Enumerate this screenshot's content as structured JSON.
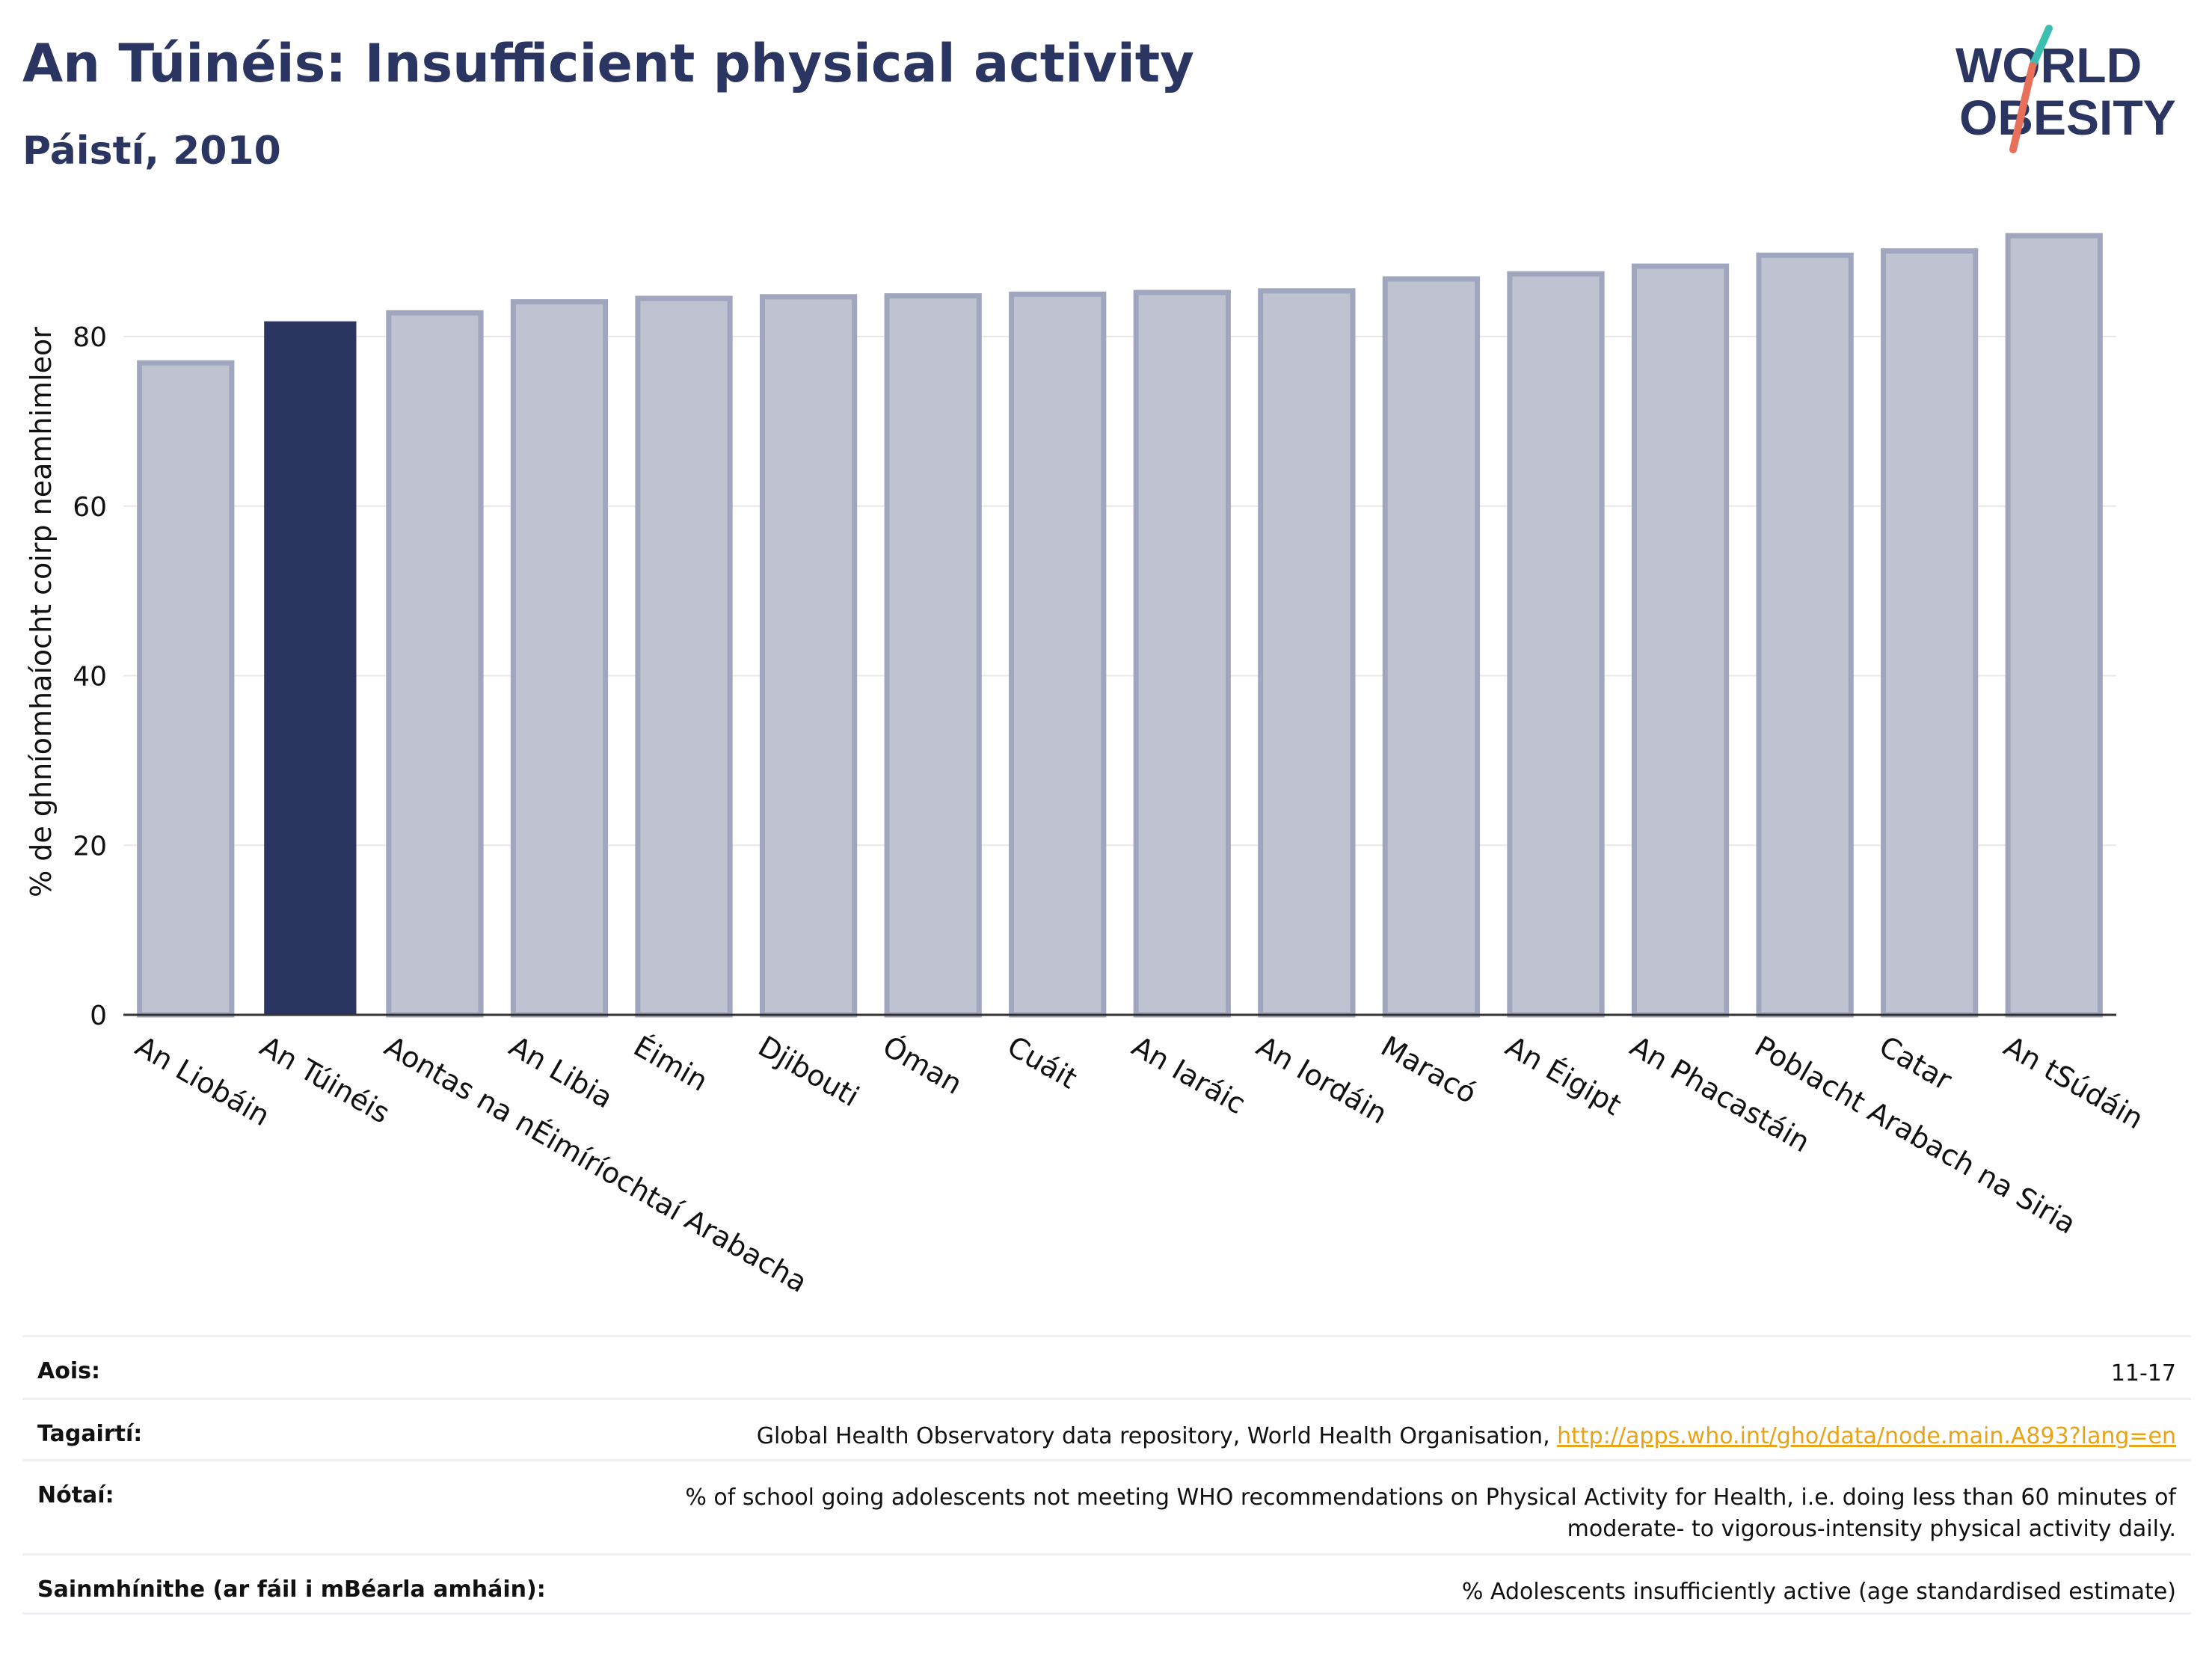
{
  "header": {
    "title": "An Túinéis: Insufficient physical activity",
    "subtitle": "Páistí, 2010"
  },
  "logo": {
    "line1": "WORLD",
    "line2": "OBESITY",
    "icon": "world-obesity-logo"
  },
  "colors": {
    "highlight": "#2b3561",
    "bar_fill": "#bfc3d1",
    "bar_stroke": "#a0a6bd",
    "grid": "#e6e8ee",
    "accent_teal": "#3bbfb0",
    "accent_coral": "#e8705a",
    "link": "#e8a317"
  },
  "chart_data": {
    "type": "bar",
    "ylabel": "% de ghníomhaíocht coirp neamhimleor",
    "ylim": [
      0,
      95
    ],
    "yticks": [
      0,
      20,
      40,
      60,
      80
    ],
    "grid": true,
    "highlight_category": "An Túinéis",
    "categories": [
      "An Liobáin",
      "An Túinéis",
      "Aontas na nÉimíríochtaí Arabacha",
      "An Libia",
      "Éimin",
      "Djibouti",
      "Óman",
      "Cuáit",
      "An Iaráic",
      "An Iordáin",
      "Maracó",
      "An Éigipt",
      "An Phacastáin",
      "Poblacht Arabach na Siria",
      "Catar",
      "An tSúdáin"
    ],
    "values": [
      76.9,
      81.8,
      82.8,
      84.1,
      84.5,
      84.7,
      84.8,
      85.0,
      85.2,
      85.4,
      86.8,
      87.4,
      88.3,
      89.6,
      90.1,
      91.9
    ]
  },
  "meta": {
    "age_label": "Aois:",
    "age_value": "11-17",
    "refs_label": "Tagairtí:",
    "refs_text": "Global Health Observatory data repository, World Health Organisation, ",
    "refs_link": "http://apps.who.int/gho/data/node.main.A893?lang=en",
    "notes_label": "Nótaí:",
    "notes_line1": "% of school going adolescents not meeting WHO recommendations on Physical Activity for Health, i.e. doing less than 60 minutes of",
    "notes_line2": "moderate- to vigorous-intensity physical activity daily.",
    "defs_label": "Sainmhínithe (ar fáil i mBéarla amháin):",
    "defs_value": "% Adolescents insufficiently active (age standardised estimate)"
  }
}
